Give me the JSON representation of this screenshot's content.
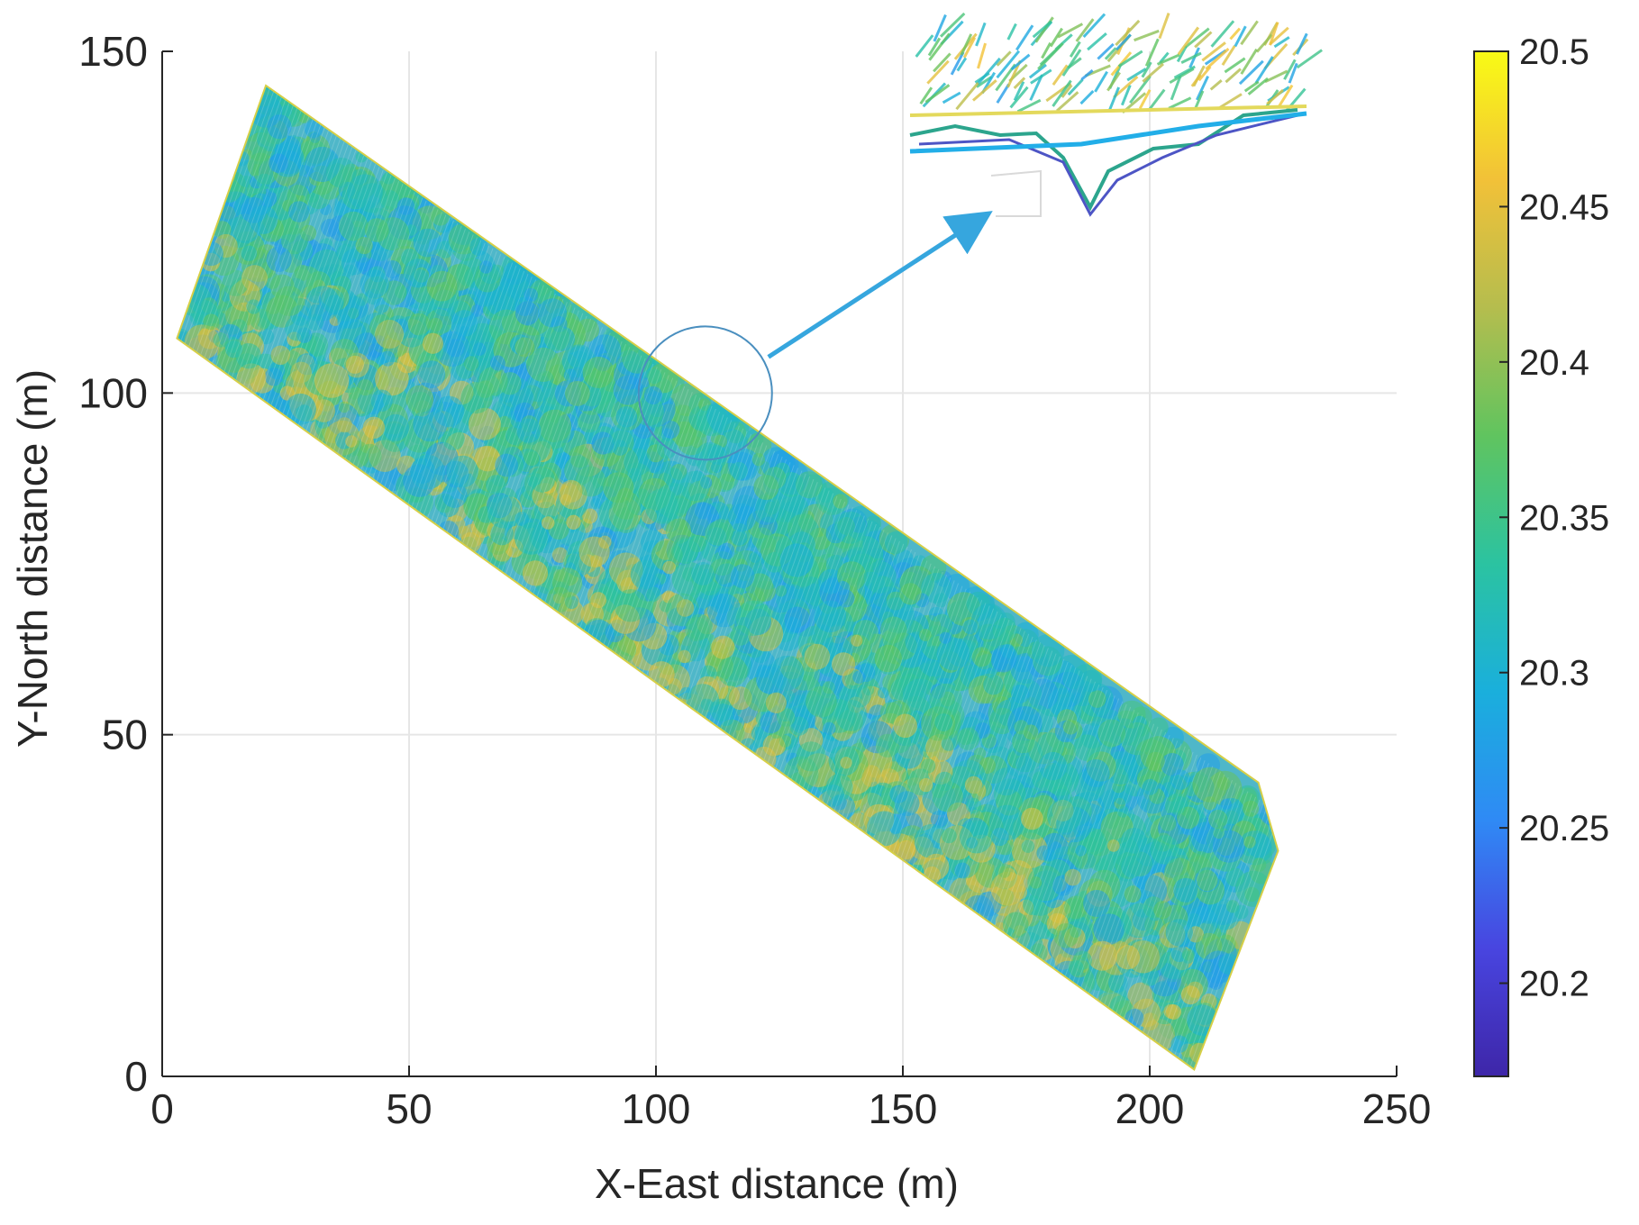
{
  "chart_data": {
    "type": "scatter",
    "title": "",
    "xlabel": "X-East distance (m)",
    "ylabel": "Y-North distance (m)",
    "xlim": [
      0,
      250
    ],
    "ylim": [
      0,
      150
    ],
    "xticks": [
      0,
      50,
      100,
      150,
      200,
      250
    ],
    "yticks": [
      0,
      50,
      100,
      150
    ],
    "grid": true,
    "field_boundary": {
      "x": [
        3,
        21,
        222,
        226,
        209,
        3
      ],
      "y": [
        108,
        145,
        43,
        33,
        1,
        108
      ]
    },
    "colorbar": {
      "range": [
        20.17,
        20.5
      ],
      "ticks": [
        20.2,
        20.25,
        20.3,
        20.35,
        20.4,
        20.45,
        20.5
      ],
      "colormap": "parula",
      "colors": [
        "#3e26a8",
        "#4845e0",
        "#2f8af5",
        "#1aafdc",
        "#2bc3a1",
        "#60c45f",
        "#b5bd4e",
        "#f2c138",
        "#f9fb15"
      ]
    },
    "inset": {
      "circle_center": [
        110,
        100
      ],
      "arrow_color": "#36a6de"
    }
  }
}
